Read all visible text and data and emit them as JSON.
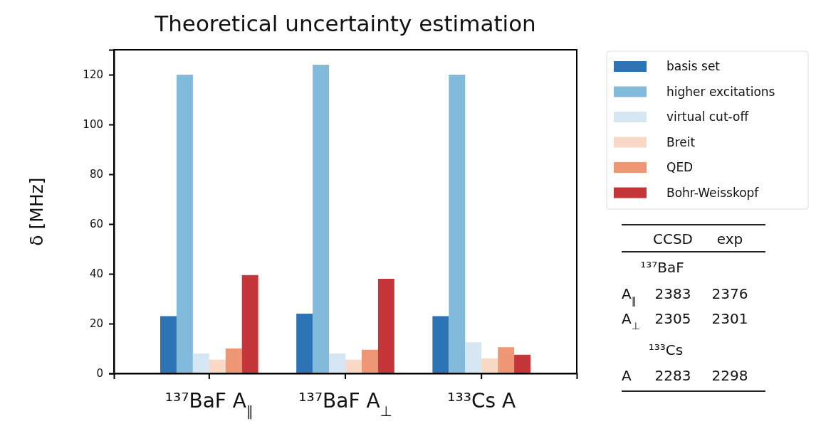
{
  "chart_data": [
    {
      "type": "bar",
      "title": "Theoretical uncertainty estimation",
      "ylabel": "δ [MHz]",
      "categories": [
        "¹³⁷BaF A$_{∥}$",
        "¹³⁷BaF A$_{⊥}$",
        "¹³³Cs A"
      ],
      "series": [
        {
          "name": "basis set",
          "color": "#2c74b5",
          "values": [
            23,
            24,
            23
          ]
        },
        {
          "name": "higher excitations",
          "color": "#82badb",
          "values": [
            120,
            124,
            120
          ]
        },
        {
          "name": "virtual cut-off",
          "color": "#d6e6f2",
          "values": [
            8,
            8,
            12.5
          ]
        },
        {
          "name": "Breit",
          "color": "#fad8c6",
          "values": [
            5.5,
            5.5,
            6
          ]
        },
        {
          "name": "QED",
          "color": "#ef9774",
          "values": [
            10,
            9.5,
            10.5
          ]
        },
        {
          "name": "Bohr-Weisskopf",
          "color": "#c5363a",
          "values": [
            39.5,
            38,
            7.5
          ]
        }
      ],
      "ylim": [
        0,
        130
      ],
      "yticks": [
        0,
        20,
        40,
        60,
        80,
        100,
        120
      ],
      "grid": false,
      "legend": "right"
    },
    {
      "type": "other",
      "annotations": [
        "CCSD",
        "exp",
        "¹³⁷BaF",
        "A$_{∥}$",
        "2383",
        "2376",
        "A$_{⊥}$",
        "2305",
        "2301",
        "¹³³Cs",
        "A",
        "2283",
        "2298"
      ]
    }
  ]
}
